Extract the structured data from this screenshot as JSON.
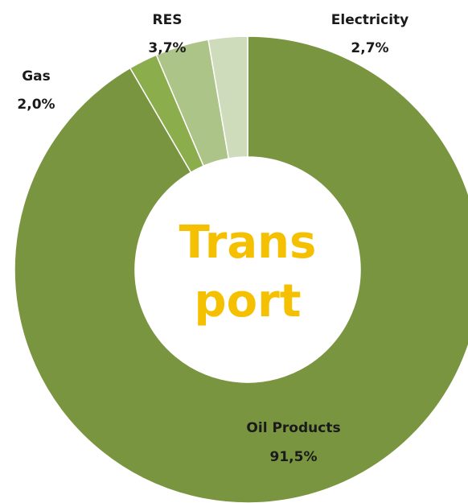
{
  "chart_data": {
    "type": "donut",
    "center_label": [
      "Trans",
      "port"
    ],
    "categories": [
      "Oil Products",
      "Gas",
      "RES",
      "Electricity"
    ],
    "values": [
      91.5,
      2.0,
      3.7,
      2.7
    ],
    "value_labels": [
      "91,5%",
      "2,0%",
      "3,7%",
      "2,7%"
    ],
    "colors": [
      "#7a9540",
      "#8cad4b",
      "#adc488",
      "#cfdcbb"
    ]
  }
}
